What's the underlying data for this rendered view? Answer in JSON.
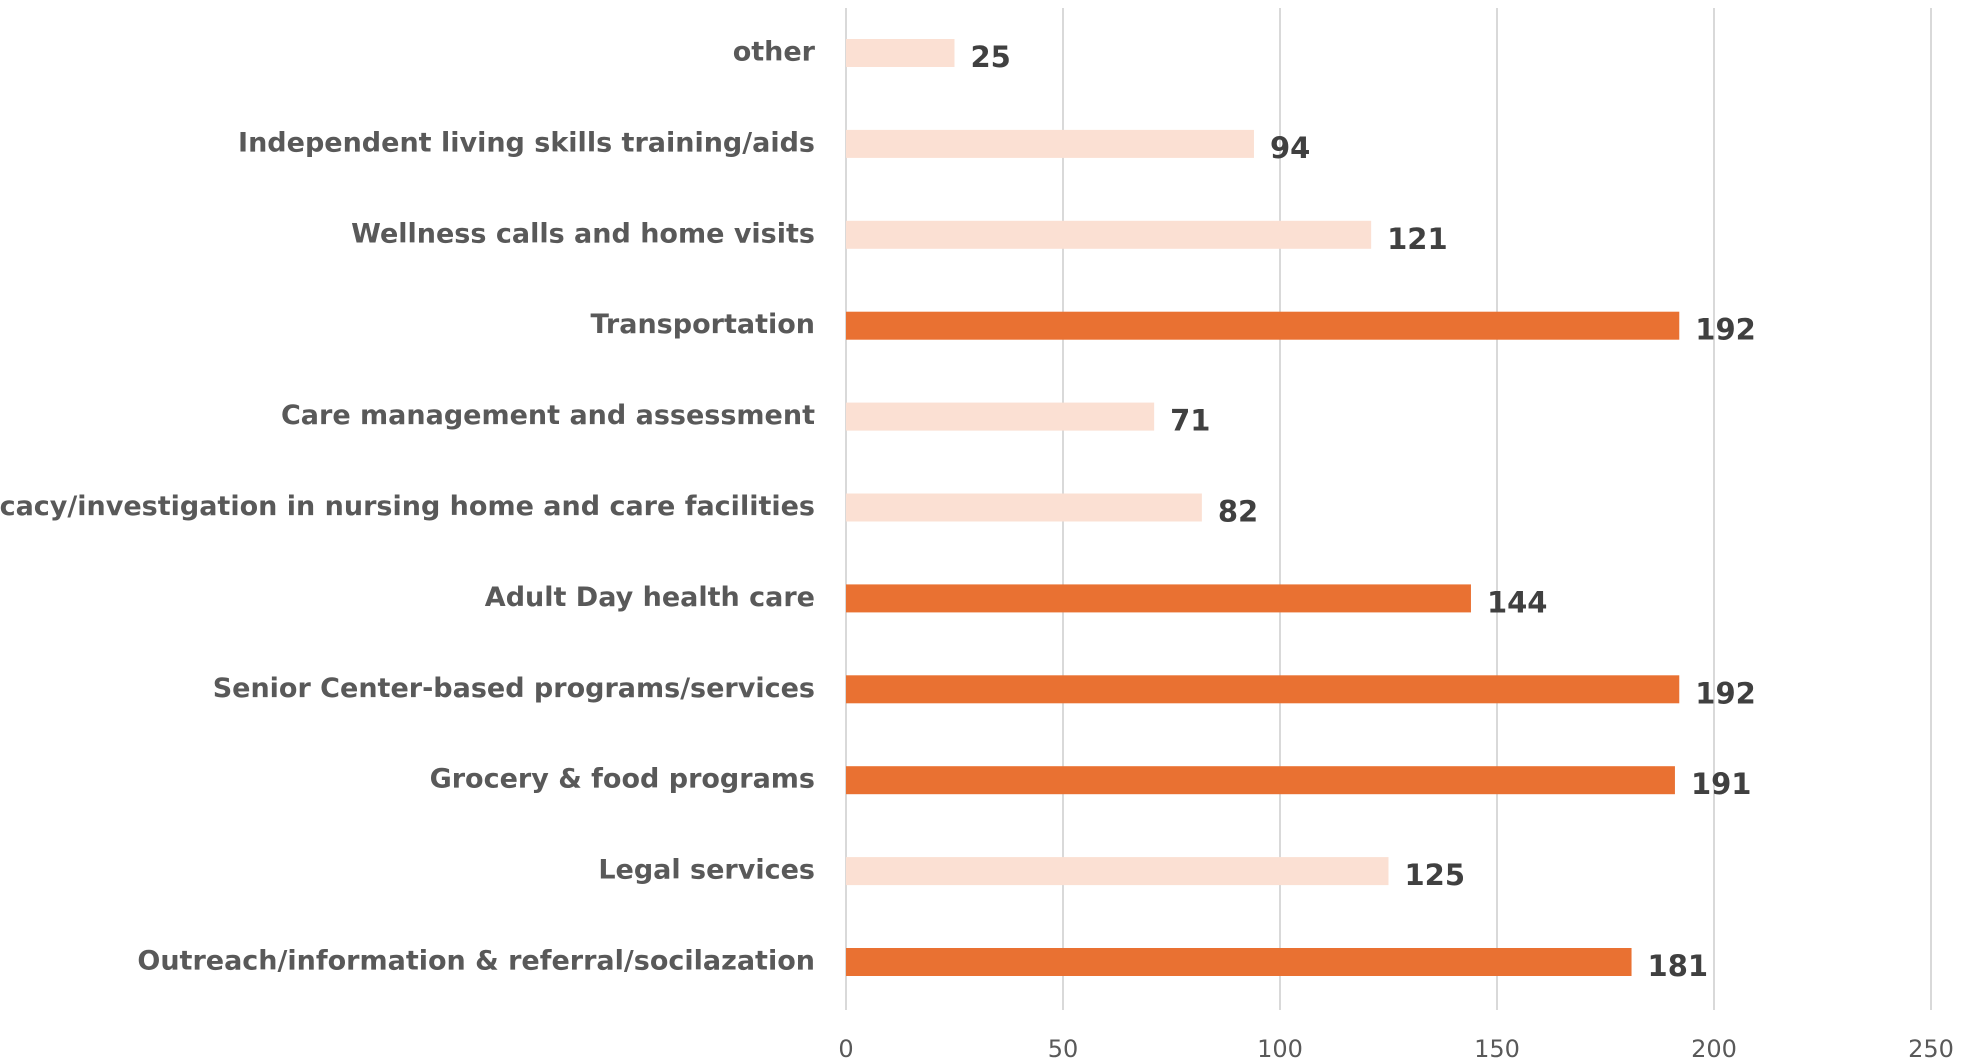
{
  "chart_data": {
    "type": "bar",
    "orientation": "horizontal",
    "categories": [
      "other",
      "Independent living skills training/aids",
      "Wellness calls and home visits",
      "Transportation",
      "Care management and assessment",
      "Advocacy/investigation in nursing home and care facilities",
      "Adult Day health care",
      "Senior Center-based programs/services",
      "Grocery & food programs",
      "Legal services",
      "Outreach/information & referral/socilazation"
    ],
    "values": [
      25,
      94,
      121,
      192,
      71,
      82,
      144,
      192,
      191,
      125,
      181
    ],
    "colors": [
      "#fbe0d3",
      "#fbe0d3",
      "#fbe0d3",
      "#e97132",
      "#fbe0d3",
      "#fbe0d3",
      "#e97132",
      "#e97132",
      "#e97132",
      "#fbe0d3",
      "#e97132"
    ],
    "xlim": [
      0,
      250
    ],
    "xticks": [
      0,
      50,
      100,
      150,
      200,
      250
    ],
    "grid": true
  }
}
